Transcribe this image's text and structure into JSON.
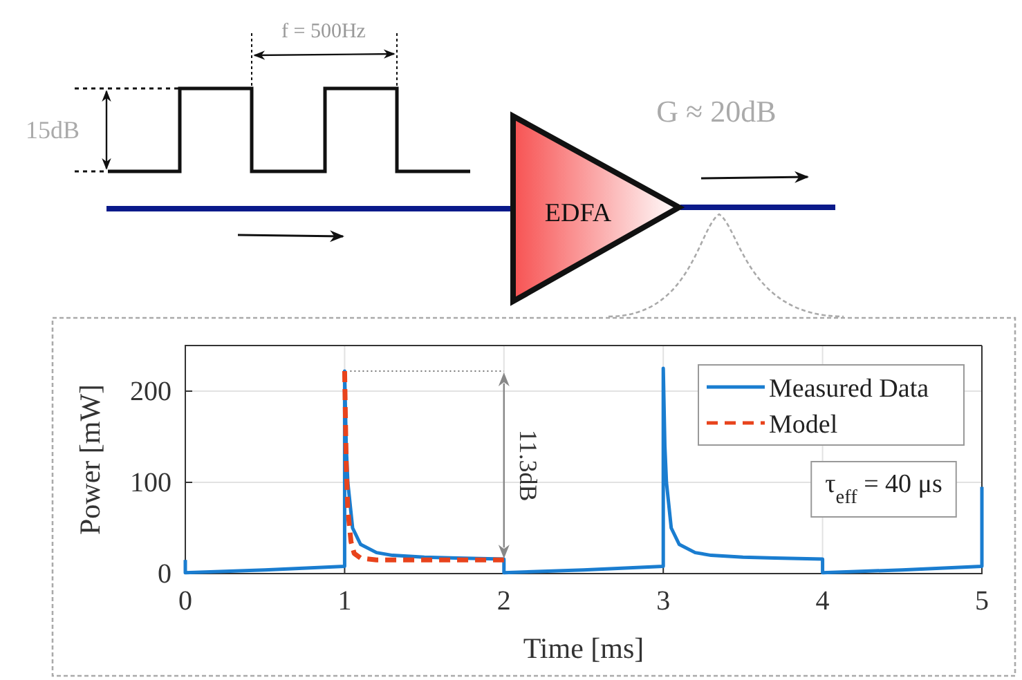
{
  "chart_data": {
    "type": "line",
    "xlabel": "Time [ms]",
    "ylabel": "Power [mW]",
    "xlim": [
      0,
      5
    ],
    "xticks": [
      0,
      1,
      2,
      3,
      4,
      5
    ],
    "ylim": [
      0,
      250
    ],
    "yticks": [
      0,
      100,
      200
    ],
    "grid": true,
    "legend": "top right",
    "series": [
      {
        "name": "Measured Data",
        "color": "#1a7dd0",
        "line_style": "solid",
        "x": [
          0,
          0,
          0.5,
          1,
          1,
          1.01,
          1.02,
          1.05,
          1.1,
          1.2,
          1.3,
          1.5,
          1.7,
          2,
          2,
          2.5,
          3,
          3,
          3.01,
          3.02,
          3.05,
          3.1,
          3.2,
          3.3,
          3.5,
          3.7,
          4,
          4,
          4.5,
          5,
          5
        ],
        "values": [
          15,
          1,
          4,
          8,
          222,
          140,
          100,
          50,
          32,
          23,
          20,
          18,
          17,
          16,
          1,
          4,
          8,
          225,
          140,
          100,
          50,
          32,
          23,
          20,
          18,
          17,
          16,
          1,
          4,
          8,
          95
        ]
      },
      {
        "name": "Model",
        "color": "#e8431c",
        "line_style": "dashed",
        "x": [
          1,
          1.01,
          1.02,
          1.04,
          1.06,
          1.1,
          1.2,
          1.5,
          2
        ],
        "values": [
          222,
          120,
          70,
          35,
          22,
          17,
          15,
          15,
          15
        ]
      }
    ],
    "annotations": [
      "11.3dB",
      "τ$_{eff}$ = 40 μs",
      "f = 500Hz",
      "15dB",
      "G ≈ 20dB",
      "EDFA"
    ]
  }
}
